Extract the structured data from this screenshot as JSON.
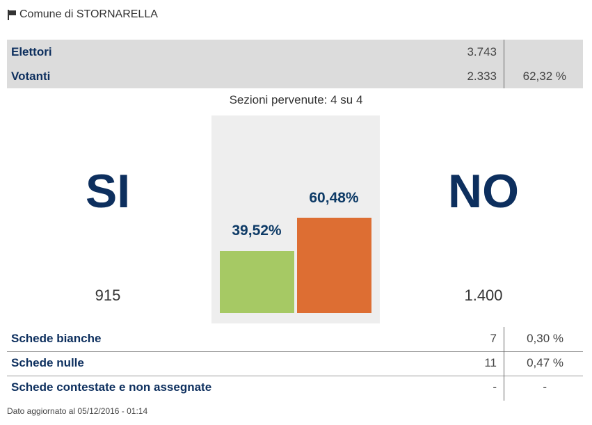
{
  "header": {
    "title": "Comune di STORNARELLA",
    "icon": "flag-icon"
  },
  "summary": [
    {
      "label": "Elettori",
      "value": "3.743",
      "percent": ""
    },
    {
      "label": "Votanti",
      "value": "2.333",
      "percent": "62,32 %"
    }
  ],
  "sections": "Sezioni pervenute: 4 su 4",
  "results": {
    "yes": {
      "label": "SI",
      "votes": "915",
      "percent_label": "39,52%",
      "percent": 39.52,
      "color": "#a6c964"
    },
    "no": {
      "label": "NO",
      "votes": "1.400",
      "percent_label": "60,48%",
      "percent": 60.48,
      "color": "#dd6e33"
    }
  },
  "ballots": [
    {
      "label": "Schede bianche",
      "value": "7",
      "percent": "0,30 %"
    },
    {
      "label": "Schede nulle",
      "value": "11",
      "percent": "0,47 %"
    },
    {
      "label": "Schede contestate e non assegnate",
      "value": "-",
      "percent": "-"
    }
  ],
  "footer": "Dato aggiornato al 05/12/2016 - 01:14"
}
